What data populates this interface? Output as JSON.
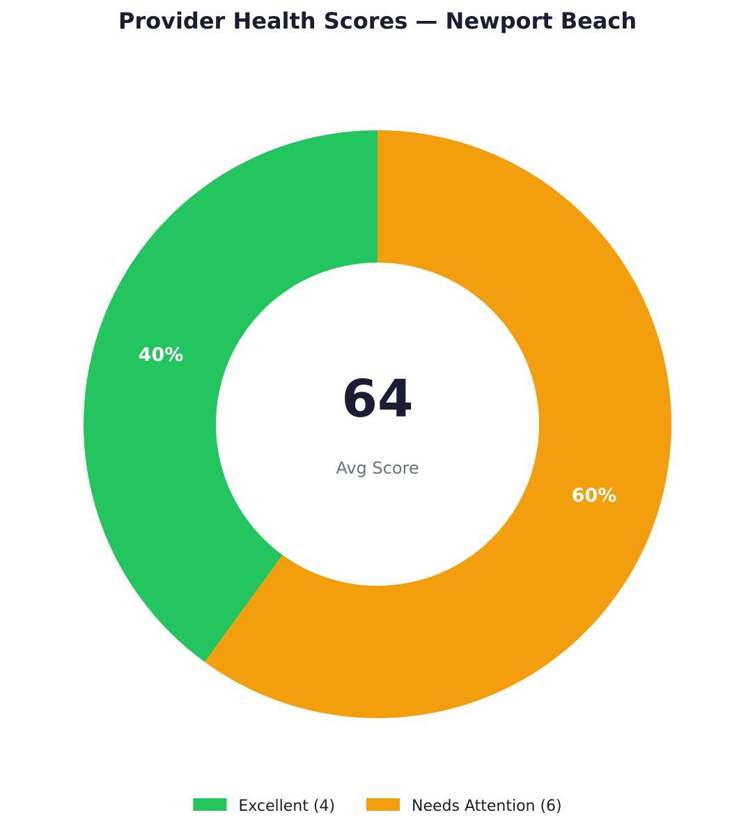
{
  "chart_data": {
    "type": "pie",
    "title": "Provider Health Scores — Newport Beach",
    "center": {
      "value": "64",
      "caption": "Avg Score"
    },
    "slices": [
      {
        "category": "Excellent",
        "count": 4,
        "percent": 40,
        "label": "40%",
        "color": "#22c55e",
        "legend": "Excellent (4)"
      },
      {
        "category": "Needs Attention",
        "count": 6,
        "percent": 60,
        "label": "60%",
        "color": "#f39f0d",
        "legend": "Needs Attention (6)"
      }
    ],
    "start": "top",
    "direction": "counterclockwise",
    "legend_position": "bottom-center"
  }
}
